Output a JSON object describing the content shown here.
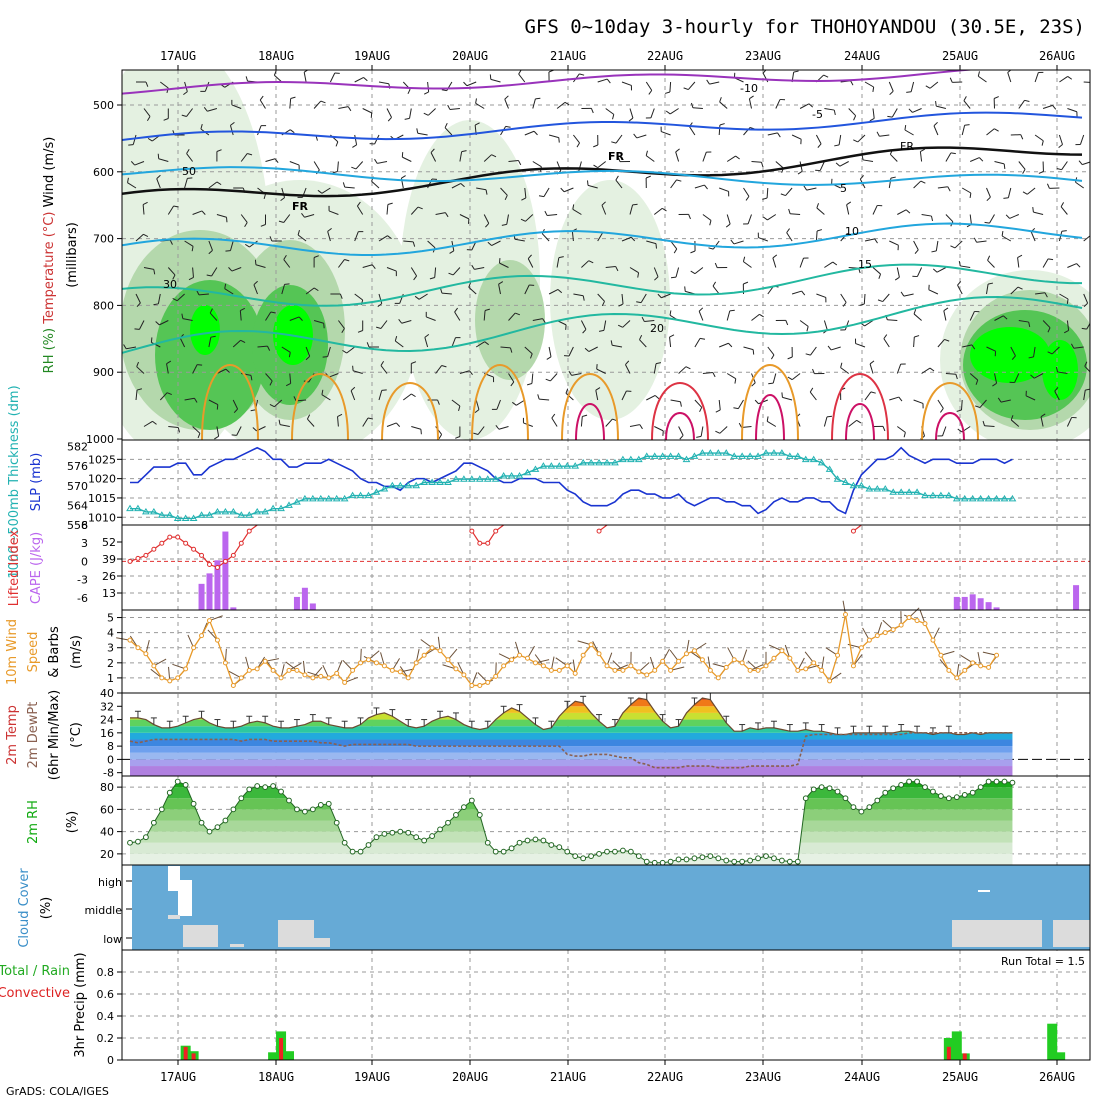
{
  "title": "GFS 0~10day 3-hourly for THOHOYANDOU (30.5E, 23S)",
  "footer": "GrADS: COLA/IGES",
  "run_total_label": "Run Total = 1.5",
  "dates": [
    "17AUG",
    "18AUG",
    "19AUG",
    "20AUG",
    "21AUG",
    "22AUG",
    "23AUG",
    "24AUG",
    "25AUG",
    "26AUG"
  ],
  "colors": {
    "axis": "#000000",
    "grid": "#9a9a9a",
    "rh_light": "#e4f1e1",
    "rh_mid": "#b4d8ac",
    "rh_green": "#55c555",
    "rh_bright": "#00ff00",
    "slp": "#1a34d0",
    "thickness": "#22b2b2",
    "lifted_index": "#e03030",
    "cape": "#bb66ee",
    "wind_speed": "#e89a2a",
    "wind_barb": "#6b5038",
    "temp_hot": "#ee2200",
    "dewpoint": "#8a6050",
    "rh2m": "#11aa11",
    "cloud_sky": "#66aad6",
    "cloud_gray": "#dcdcdc",
    "precip_total": "#22cc22",
    "precip_conv": "#ee2222"
  },
  "panels": {
    "upper_air": {
      "ylabel_parts": [
        "RH (%)",
        "Temperature (°C)",
        "Wind (m/s)"
      ],
      "ylabel_unit": "(millibars)",
      "yticks": [
        500,
        600,
        700,
        800,
        900,
        1000
      ],
      "contour_labels": [
        "-10",
        "-5",
        "FR",
        "5",
        "10",
        "15",
        "20",
        "30",
        "50"
      ],
      "frz_label": "FR"
    },
    "pressure": {
      "ylabel_left": "1000~500mb Thickness (dm)",
      "ylabel_right": "SLP (mb)",
      "left_ticks": [
        558,
        564,
        570,
        576,
        582
      ],
      "right_ticks": [
        1010,
        1015,
        1020,
        1025
      ]
    },
    "stability": {
      "ylabel_left": "Lifted Index",
      "ylabel_right": "CAPE (J/kg)",
      "left_ticks": [
        6,
        3,
        0,
        -3,
        -6
      ],
      "right_ticks": [
        13,
        26,
        39,
        52
      ]
    },
    "wind10m": {
      "ylabel": [
        "10m Wind",
        "Speed",
        "& Barbs",
        "(m/s)"
      ],
      "yticks": [
        1,
        2,
        3,
        4,
        5
      ]
    },
    "temp2m": {
      "ylabel": [
        "2m Temp",
        "2m DewPt",
        "(6hr Min/Max)",
        "(°C)"
      ],
      "yticks": [
        -8,
        0,
        8,
        16,
        24,
        32,
        40
      ]
    },
    "rh2m": {
      "ylabel": [
        "2m RH",
        "(%)"
      ],
      "yticks": [
        20,
        40,
        60,
        80
      ]
    },
    "cloud": {
      "ylabel": [
        "Cloud Cover",
        "(%)"
      ],
      "yticks": [
        "low",
        "middle",
        "high"
      ]
    },
    "precip": {
      "ylabel_left": [
        "Total / Rain",
        "Convective"
      ],
      "ylabel_right": "3hr Precip (mm)",
      "yticks": [
        0,
        0.2,
        0.4,
        0.6,
        0.8
      ]
    }
  },
  "chart_data": [
    {
      "type": "line",
      "name": "SLP",
      "xlabel": "",
      "ylabel": "SLP (mb)",
      "ylim": [
        1008,
        1030
      ],
      "x_step_hours": 3,
      "values": [
        1019,
        1019,
        1021,
        1023,
        1023,
        1023,
        1024,
        1024,
        1021,
        1021,
        1023,
        1024,
        1025,
        1025,
        1026,
        1027,
        1028,
        1027,
        1025,
        1025,
        1023,
        1023,
        1024,
        1024,
        1024,
        1025,
        1024,
        1023,
        1022,
        1020,
        1019,
        1019,
        1018,
        1018,
        1017,
        1019,
        1020,
        1020,
        1019,
        1020,
        1021,
        1022,
        1024,
        1024,
        1023,
        1022,
        1020,
        1019,
        1019,
        1020,
        1020,
        1020,
        1019,
        1019,
        1019,
        1017,
        1016,
        1014,
        1013,
        1013,
        1013,
        1014,
        1016,
        1017,
        1017,
        1016,
        1016,
        1015,
        1015,
        1016,
        1014,
        1013,
        1014,
        1015,
        1015,
        1014,
        1014,
        1013,
        1013,
        1011,
        1012,
        1014,
        1015,
        1014,
        1014,
        1015,
        1015,
        1014,
        1014,
        1012,
        1011,
        1017,
        1021,
        1023,
        1025,
        1025,
        1026,
        1028,
        1026,
        1025,
        1024,
        1025,
        1025,
        1025,
        1024,
        1024,
        1024,
        1025,
        1025,
        1025,
        1024,
        1025
      ]
    },
    {
      "type": "line",
      "name": "1000~500mb Thickness",
      "ylabel": "Thickness (dm)",
      "ylim": [
        558,
        584
      ],
      "x_step_hours": 3,
      "values": [
        563,
        563,
        562,
        562,
        561,
        561,
        560,
        560,
        560,
        561,
        561,
        562,
        562,
        562,
        561,
        561,
        562,
        562,
        563,
        563,
        564,
        565,
        566,
        566,
        566,
        566,
        566,
        566,
        567,
        567,
        567,
        568,
        569,
        570,
        570,
        570,
        570,
        571,
        571,
        571,
        571,
        572,
        572,
        572,
        572,
        572,
        572,
        573,
        573,
        573,
        574,
        575,
        576,
        576,
        576,
        576,
        576,
        577,
        577,
        577,
        577,
        577,
        578,
        578,
        578,
        579,
        579,
        579,
        579,
        579,
        578,
        579,
        580,
        580,
        580,
        580,
        579,
        579,
        579,
        579,
        580,
        580,
        580,
        579,
        579,
        578,
        578,
        577,
        575,
        572,
        571,
        570,
        570,
        569,
        569,
        569,
        568,
        568,
        568,
        568,
        567,
        567,
        567,
        567,
        566,
        566,
        566,
        566,
        566,
        566,
        566,
        566
      ]
    },
    {
      "type": "line",
      "name": "Lifted Index",
      "ylabel": "Lifted Index",
      "ylim": [
        6,
        -8
      ],
      "x_step_hours": 3,
      "values": [
        0,
        0.5,
        1,
        2,
        3,
        4,
        4,
        3,
        2,
        1,
        -0.5,
        -1,
        0,
        1,
        3,
        5,
        6,
        6,
        6,
        6,
        6,
        6,
        6,
        6,
        6,
        6,
        6,
        6,
        6,
        6,
        6,
        6,
        6,
        6,
        6,
        6,
        6,
        6,
        6,
        6,
        6,
        6,
        6,
        5,
        3,
        3,
        5,
        6,
        6,
        6,
        6,
        6,
        6,
        6,
        6,
        6,
        6,
        6,
        6,
        5,
        6,
        6,
        6,
        6,
        6,
        6,
        6,
        6,
        6,
        6,
        6,
        6,
        6,
        6,
        6,
        6,
        6,
        6,
        6,
        6,
        6,
        6,
        6,
        6,
        6,
        6,
        6,
        6,
        6,
        6,
        6,
        5,
        6,
        6,
        6,
        6,
        6,
        6,
        6,
        6,
        6,
        6,
        6,
        6,
        6,
        6,
        6,
        6,
        6,
        6,
        6,
        6
      ]
    },
    {
      "type": "bar",
      "name": "CAPE",
      "ylabel": "CAPE (J/kg)",
      "ylim": [
        0,
        65
      ],
      "bars": [
        [
          9,
          20
        ],
        [
          10,
          28
        ],
        [
          11,
          38
        ],
        [
          12,
          60
        ],
        [
          13,
          2
        ],
        [
          21,
          10
        ],
        [
          22,
          17
        ],
        [
          23,
          5
        ],
        [
          104,
          10
        ],
        [
          105,
          10
        ],
        [
          106,
          12
        ],
        [
          107,
          9
        ],
        [
          108,
          6
        ],
        [
          109,
          2
        ],
        [
          119,
          19
        ]
      ]
    },
    {
      "type": "line",
      "name": "10m Wind Speed",
      "ylabel": "Speed (m/s)",
      "ylim": [
        0,
        5.5
      ],
      "x_step_hours": 3,
      "values": [
        3.5,
        3.0,
        2.6,
        1.8,
        1.0,
        0.8,
        1.0,
        1.6,
        3.0,
        3.8,
        4.8,
        3.5,
        2.0,
        0.5,
        1.0,
        1.5,
        1.6,
        2.1,
        1.5,
        1.0,
        1.5,
        1.5,
        1.2,
        1.0,
        1.1,
        1.0,
        1.3,
        0.7,
        1.5,
        2.0,
        2.2,
        2.0,
        1.8,
        1.5,
        1.4,
        1.0,
        2.0,
        2.5,
        3.0,
        2.8,
        2.2,
        1.6,
        1.2,
        0.5,
        0.5,
        0.7,
        1.1,
        1.8,
        2.2,
        2.5,
        2.3,
        2.0,
        1.8,
        1.5,
        1.5,
        1.8,
        1.3,
        2.5,
        3.2,
        2.6,
        1.8,
        1.5,
        1.5,
        1.8,
        1.4,
        1.2,
        1.5,
        2.1,
        1.5,
        2.1,
        2.6,
        2.8,
        2.2,
        1.5,
        1.0,
        1.7,
        2.2,
        2.0,
        1.5,
        1.5,
        1.8,
        2.3,
        2.8,
        2.3,
        1.5,
        1.6,
        2.0,
        1.5,
        0.8,
        2.5,
        5.2,
        1.8,
        3.0,
        3.5,
        3.8,
        4.0,
        4.2,
        4.5,
        5.0,
        4.8,
        4.6,
        3.5,
        2.5,
        1.5,
        1.0,
        1.5,
        2.0,
        1.8,
        1.7,
        2.5
      ]
    },
    {
      "type": "area",
      "name": "2m Temp",
      "ylabel": "2m Temp (°C)",
      "ylim": [
        -10,
        40
      ],
      "x_step_hours": 3,
      "values": [
        25,
        25,
        24,
        21,
        19,
        19,
        20,
        22,
        24,
        25,
        22,
        20,
        19,
        19,
        20,
        22,
        23,
        22,
        20,
        19,
        19,
        20,
        21,
        23,
        23,
        21,
        20,
        19,
        19,
        21,
        25,
        27,
        28,
        26,
        23,
        20,
        19,
        20,
        23,
        25,
        26,
        24,
        21,
        19,
        18,
        19,
        24,
        28,
        31,
        29,
        25,
        21,
        18,
        19,
        26,
        31,
        35,
        34,
        28,
        23,
        19,
        20,
        28,
        33,
        37,
        36,
        29,
        23,
        19,
        20,
        28,
        33,
        37,
        36,
        29,
        22,
        17,
        17,
        19,
        18,
        19,
        19,
        18,
        17,
        17,
        18,
        17,
        17,
        16,
        15,
        15,
        16,
        16,
        16,
        16,
        16,
        16,
        17,
        17,
        16,
        16,
        15,
        16,
        16,
        15,
        15,
        16,
        15,
        16,
        16,
        16,
        16
      ]
    },
    {
      "type": "line",
      "name": "2m DewPt",
      "ylabel": "2m DewPt (°C)",
      "ylim": [
        -10,
        40
      ],
      "x_step_hours": 3,
      "values": [
        11,
        10,
        11,
        12,
        12,
        12,
        12,
        12,
        12,
        12,
        12,
        12,
        12,
        12,
        11,
        12,
        12,
        12,
        11,
        11,
        11,
        11,
        11,
        11,
        10,
        10,
        9,
        8,
        9,
        9,
        9,
        9,
        9,
        9,
        9,
        9,
        8,
        8,
        8,
        8,
        8,
        8,
        8,
        8,
        8,
        8,
        8,
        8,
        8,
        8,
        8,
        8,
        8,
        8,
        8,
        3,
        2,
        2,
        3,
        3,
        3,
        2,
        1,
        1,
        -2,
        -3,
        -5,
        -5,
        -5,
        -5,
        -4,
        -4,
        -4,
        -4,
        -5,
        -5,
        -5,
        -5,
        -4,
        -4,
        -4,
        -4,
        -4,
        -4,
        -3,
        14,
        15,
        15,
        15,
        15,
        15,
        15,
        15,
        15,
        15,
        15,
        15,
        15,
        16,
        16,
        16,
        16,
        16,
        16,
        16,
        16,
        16,
        16,
        16,
        16,
        16,
        16
      ]
    },
    {
      "type": "area",
      "name": "2m RH",
      "ylabel": "2m RH (%)",
      "ylim": [
        10,
        90
      ],
      "x_step_hours": 3,
      "values": [
        30,
        31,
        35,
        48,
        60,
        75,
        85,
        82,
        65,
        48,
        40,
        44,
        50,
        60,
        70,
        78,
        81,
        80,
        81,
        76,
        68,
        60,
        58,
        60,
        64,
        65,
        48,
        30,
        22,
        22,
        28,
        35,
        38,
        39,
        40,
        39,
        35,
        32,
        36,
        42,
        48,
        55,
        62,
        68,
        55,
        30,
        22,
        22,
        25,
        30,
        32,
        33,
        32,
        28,
        26,
        22,
        18,
        16,
        18,
        20,
        22,
        22,
        23,
        22,
        18,
        13,
        12,
        12,
        13,
        15,
        15,
        16,
        17,
        18,
        16,
        14,
        13,
        13,
        14,
        16,
        18,
        16,
        14,
        13,
        13,
        70,
        78,
        80,
        79,
        76,
        70,
        62,
        58,
        62,
        68,
        75,
        79,
        82,
        85,
        85,
        80,
        76,
        72,
        70,
        71,
        73,
        75,
        80,
        85,
        85,
        85,
        84
      ]
    },
    {
      "type": "bar",
      "name": "3hr Precip",
      "ylabel": "3hr Precip (mm)",
      "ylim": [
        0,
        1.0
      ],
      "bars": [
        [
          7,
          0.13,
          0.12
        ],
        [
          8,
          0.08,
          0.06
        ],
        [
          18,
          0.07,
          0
        ],
        [
          19,
          0.26,
          0.2
        ],
        [
          20,
          0.08,
          0
        ],
        [
          103,
          0.2,
          0.12
        ],
        [
          104,
          0.26,
          0
        ],
        [
          105,
          0.06,
          0.06
        ],
        [
          116,
          0.33,
          0
        ],
        [
          117,
          0.07,
          0
        ]
      ]
    }
  ]
}
